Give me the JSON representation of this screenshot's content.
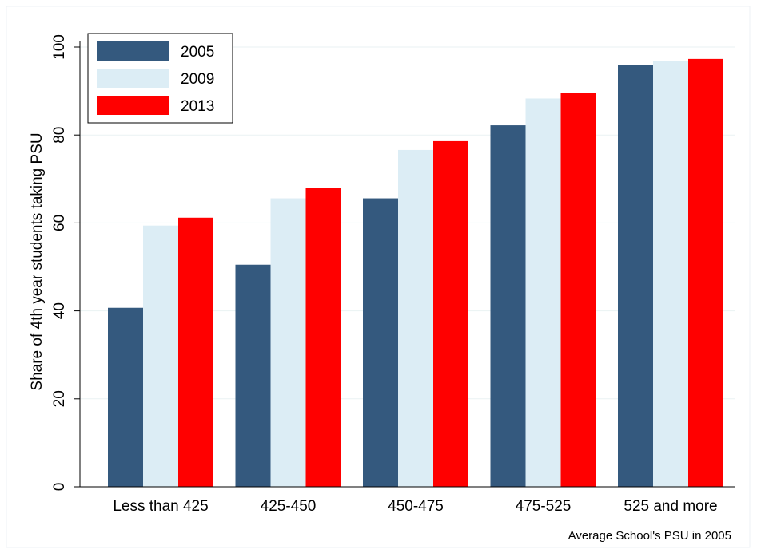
{
  "chart_data": {
    "type": "bar",
    "title": "",
    "xlabel": "Average School's PSU in 2005",
    "ylabel": "Share of 4th year students taking PSU",
    "ylim": [
      0,
      100
    ],
    "yticks": [
      0,
      20,
      40,
      60,
      80,
      100
    ],
    "grid": true,
    "legend_position": "top-left",
    "categories": [
      "Less than 425",
      "425-450",
      "450-475",
      "475-525",
      "525 and more"
    ],
    "series": [
      {
        "name": "2005",
        "color": "#34597e",
        "values": [
          40.7,
          50.5,
          65.6,
          82.2,
          95.9
        ]
      },
      {
        "name": "2009",
        "color": "#dcedf5",
        "values": [
          59.4,
          65.6,
          76.6,
          88.3,
          96.8
        ]
      },
      {
        "name": "2013",
        "color": "#ff0000",
        "values": [
          61.2,
          68.0,
          78.6,
          89.6,
          97.3
        ]
      }
    ]
  }
}
